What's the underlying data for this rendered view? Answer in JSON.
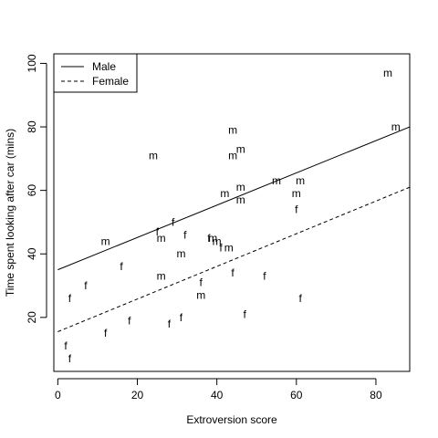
{
  "chart_data": {
    "type": "scatter",
    "xlabel": "Extroversion score",
    "ylabel": "Time spent looking after car (mins)",
    "xlim": [
      -1,
      88.5
    ],
    "ylim": [
      3,
      103
    ],
    "xticks": [
      0,
      20,
      40,
      60,
      80
    ],
    "yticks": [
      20,
      40,
      60,
      80,
      100
    ],
    "legend": {
      "placement": "top-left",
      "entries": [
        {
          "name": "Male",
          "line": "solid"
        },
        {
          "name": "Female",
          "line": "dashed"
        }
      ]
    },
    "series": [
      {
        "name": "Male",
        "marker": "m",
        "points": [
          [
            83,
            97
          ],
          [
            85,
            80
          ],
          [
            44,
            79
          ],
          [
            46,
            73
          ],
          [
            44,
            71
          ],
          [
            24,
            71
          ],
          [
            55,
            63
          ],
          [
            61,
            63
          ],
          [
            46,
            61
          ],
          [
            42,
            59
          ],
          [
            60,
            59
          ],
          [
            46,
            57
          ],
          [
            12,
            44
          ],
          [
            39,
            45
          ],
          [
            40,
            44
          ],
          [
            43,
            42
          ],
          [
            26,
            45
          ],
          [
            31,
            40
          ],
          [
            26,
            33
          ],
          [
            36,
            27
          ]
        ],
        "fit": {
          "x": [
            0,
            88.5
          ],
          "y": [
            35,
            80
          ]
        }
      },
      {
        "name": "Female",
        "marker": "f",
        "points": [
          [
            29,
            50
          ],
          [
            25,
            47
          ],
          [
            32,
            46
          ],
          [
            38,
            45
          ],
          [
            41,
            42
          ],
          [
            60,
            54
          ],
          [
            16,
            36
          ],
          [
            44,
            34
          ],
          [
            52,
            33
          ],
          [
            36,
            31
          ],
          [
            7,
            30
          ],
          [
            3,
            26
          ],
          [
            61,
            26
          ],
          [
            47,
            21
          ],
          [
            18,
            19
          ],
          [
            31,
            20
          ],
          [
            28,
            18
          ],
          [
            12,
            15
          ],
          [
            2,
            11
          ],
          [
            3,
            7
          ]
        ],
        "fit": {
          "x": [
            0,
            88.5
          ],
          "y": [
            15.5,
            61
          ]
        }
      }
    ]
  }
}
